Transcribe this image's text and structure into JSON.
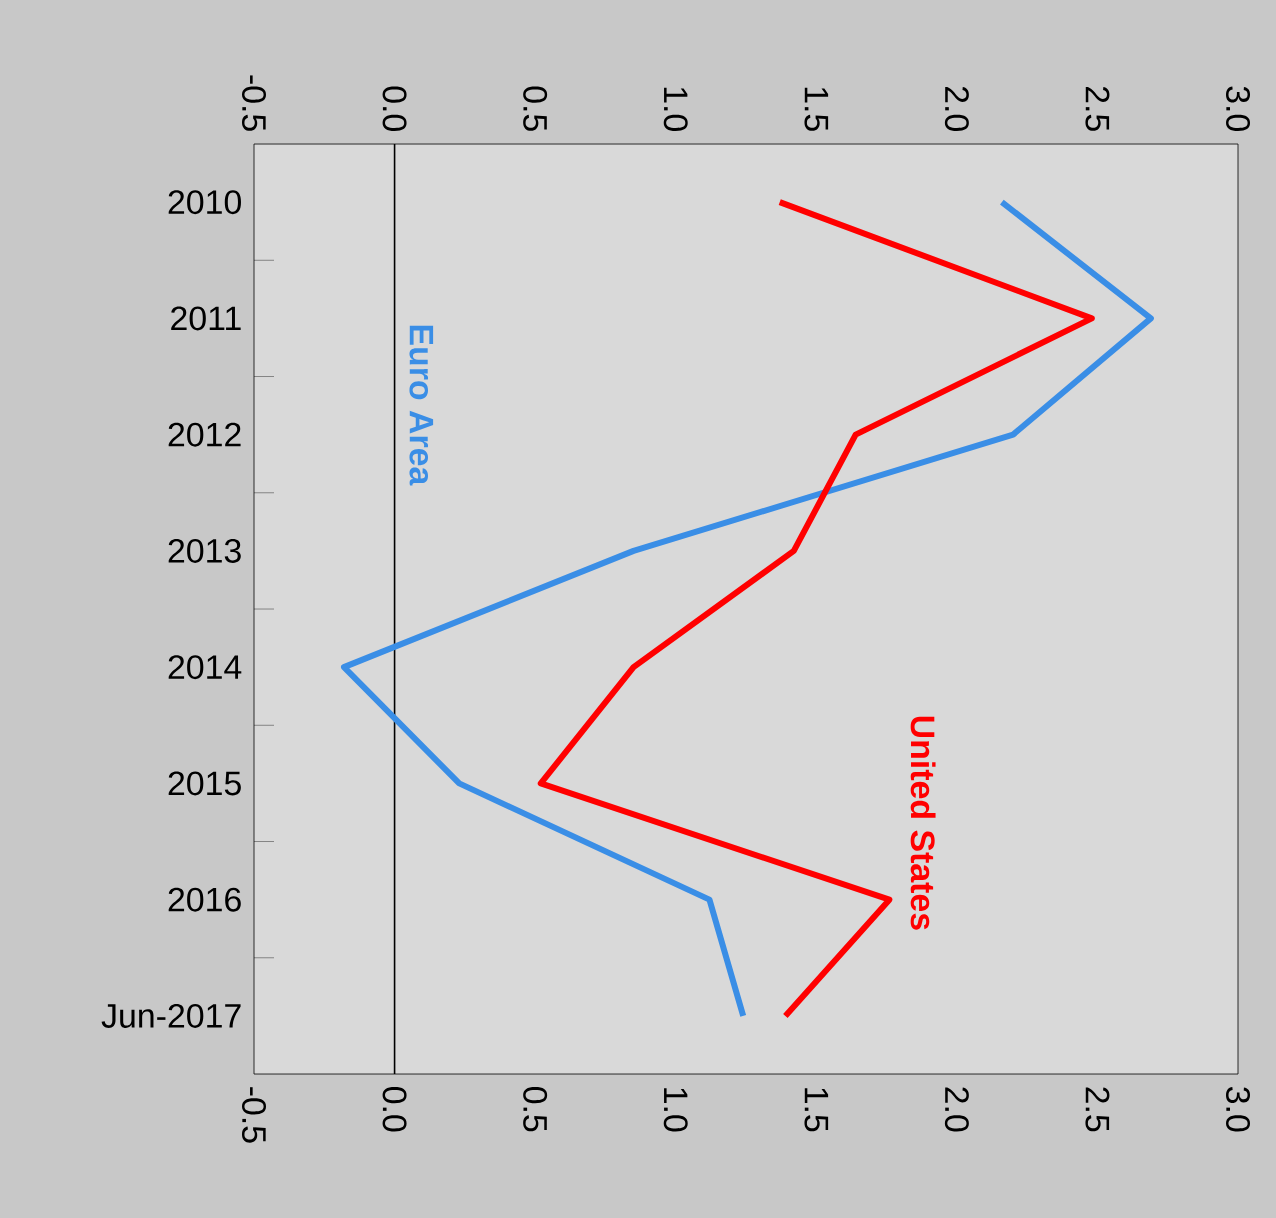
{
  "chart_data": {
    "type": "line",
    "orientation": "horizontal",
    "categories": [
      "2010",
      "2011",
      "2012",
      "2013",
      "2014",
      "2015",
      "2016",
      "Jun-2017"
    ],
    "series": [
      {
        "name": "Euro Area",
        "color": "#3a8ee6",
        "values": [
          2.16,
          2.69,
          2.2,
          0.85,
          -0.18,
          0.23,
          1.12,
          1.24
        ]
      },
      {
        "name": "United States",
        "color": "#ff0000",
        "values": [
          1.37,
          2.48,
          1.64,
          1.42,
          0.85,
          0.52,
          1.76,
          1.39
        ]
      }
    ],
    "xlim": [
      -0.5,
      3
    ],
    "xticks": [
      {
        "value": -0.5,
        "label": "-0.5"
      },
      {
        "value": 0,
        "label": "0.0"
      },
      {
        "value": 0.5,
        "label": "0.5"
      },
      {
        "value": 1,
        "label": "1.0"
      },
      {
        "value": 1.5,
        "label": "1.5"
      },
      {
        "value": 2,
        "label": "2.0"
      },
      {
        "value": 2.5,
        "label": "2.5"
      },
      {
        "value": 3,
        "label": "3.0"
      }
    ],
    "x2lim": [
      -0.5,
      3
    ],
    "x2ticks": [
      {
        "value": -0.5,
        "label": "-0.5"
      },
      {
        "value": 0,
        "label": "0.0"
      },
      {
        "value": 0.5,
        "label": "0.5"
      },
      {
        "value": 1,
        "label": "1.0"
      },
      {
        "value": 1.5,
        "label": "1.5"
      },
      {
        "value": 2,
        "label": "2.0"
      },
      {
        "value": 2.5,
        "label": "2.5"
      },
      {
        "value": 3,
        "label": "3.0"
      }
    ]
  }
}
